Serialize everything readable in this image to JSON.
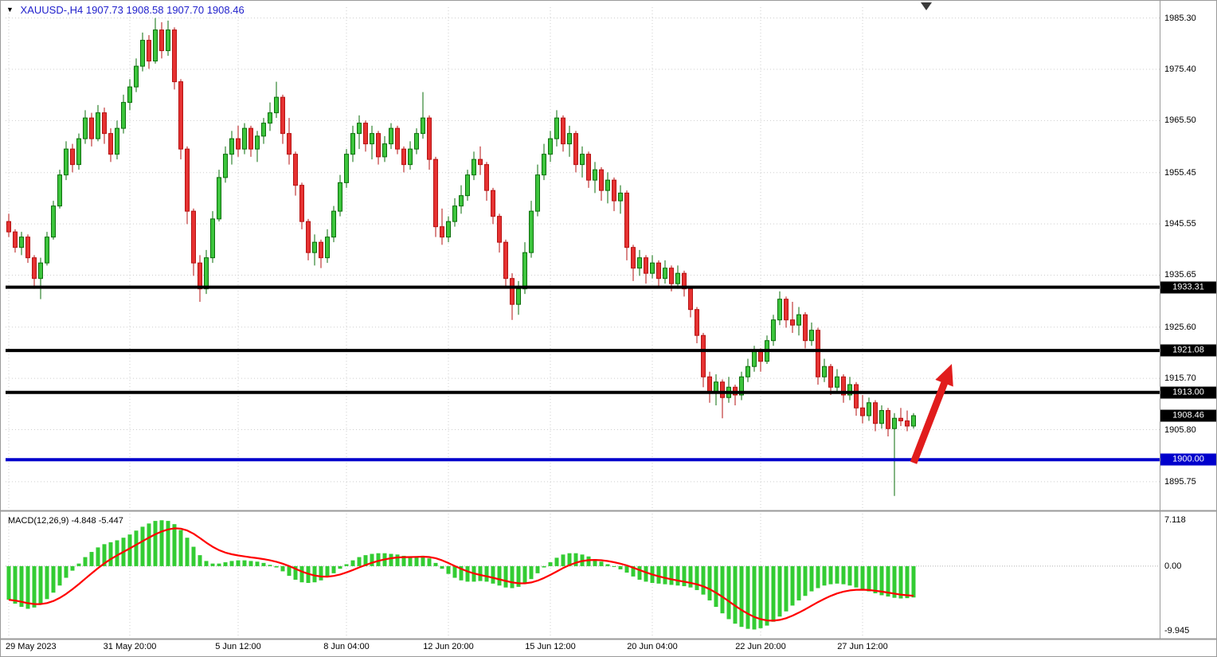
{
  "window": {
    "background": "#FFFFFF",
    "border_color": "#9A9A9A"
  },
  "header": {
    "dropdown_marker": "▼",
    "title": "XAUUSD-,H4 1907.73 1908.58 1907.70 1908.46",
    "color": "#2121CC"
  },
  "colors": {
    "up_body": "#3DC53D",
    "up_edge": "#0A6E0A",
    "down_body": "#E63232",
    "down_edge": "#B51212",
    "grid": "#CDCDCD",
    "separator": "#9A9A9A",
    "macd_hist": "#33CC33",
    "macd_signal": "#FF0000",
    "arrow": "#E11C1C",
    "level_black": "#000000",
    "level_blue": "#0000CC",
    "marker_bg": "#000000",
    "marker_text": "#FFFFFF",
    "axis_text": "#000000"
  },
  "price_axis": {
    "ticks": [
      "1985.30",
      "1975.40",
      "1965.50",
      "1955.45",
      "1945.55",
      "1935.65",
      "1925.60",
      "1915.70",
      "1905.80",
      "1895.75"
    ]
  },
  "time_axis": {
    "labels": [
      {
        "text": "29 May 2023",
        "index": 0
      },
      {
        "text": "31 May 20:00",
        "index": 19
      },
      {
        "text": "5 Jun 12:00",
        "index": 36
      },
      {
        "text": "8 Jun 04:00",
        "index": 53
      },
      {
        "text": "12 Jun 20:00",
        "index": 69
      },
      {
        "text": "15 Jun 12:00",
        "index": 85
      },
      {
        "text": "20 Jun 04:00",
        "index": 101
      },
      {
        "text": "22 Jun 20:00",
        "index": 118
      },
      {
        "text": "27 Jun 12:00",
        "index": 134
      }
    ]
  },
  "levels": [
    {
      "label": "1933.31",
      "price": 1933.31,
      "color": "#000000"
    },
    {
      "label": "1921.08",
      "price": 1921.08,
      "color": "#000000"
    },
    {
      "label": "1913.00",
      "price": 1913.0,
      "color": "#000000"
    },
    {
      "label": "1900.00",
      "price": 1900.0,
      "color": "#0000CC"
    }
  ],
  "price_marker": {
    "label": "1908.46",
    "price": 1908.46
  },
  "macd_panel": {
    "indicator_label": "MACD(12,26,9) -4.848 -5.447",
    "macd_value": -4.848,
    "signal_value": -5.447,
    "ticks": [
      {
        "text": "7.118",
        "value": 7.118
      },
      {
        "text": "0.00",
        "value": 0
      },
      {
        "text": "-9.945",
        "value": -9.945
      }
    ]
  },
  "annotations": {
    "arrow": {
      "start_index": 142,
      "start_price": 1899.4,
      "end_index": 148,
      "end_price": 1918.5
    },
    "shift_marker_index": 144
  },
  "chart_data": {
    "type": "candlestick",
    "symbol": "XAUUSD",
    "timeframe": "H4",
    "ylim": [
      1890.5,
      1987.4
    ],
    "macd_ylim": [
      -11.1,
      8.0
    ],
    "signal_period": 9,
    "candles": [
      [
        1946,
        1947.5,
        1943,
        1944
      ],
      [
        1944,
        1944.5,
        1940,
        1941
      ],
      [
        1941,
        1944,
        1939.5,
        1943
      ],
      [
        1943,
        1943.5,
        1938,
        1939
      ],
      [
        1939,
        1939.5,
        1933,
        1935
      ],
      [
        1935,
        1939,
        1931,
        1938
      ],
      [
        1938,
        1944,
        1937.5,
        1943
      ],
      [
        1943,
        1950,
        1942.5,
        1949
      ],
      [
        1949,
        1956,
        1948.5,
        1955
      ],
      [
        1955,
        1961.5,
        1954,
        1960
      ],
      [
        1960,
        1961,
        1955.5,
        1957
      ],
      [
        1957,
        1963,
        1956,
        1962
      ],
      [
        1962,
        1967.5,
        1961,
        1966
      ],
      [
        1966,
        1967,
        1960.5,
        1962
      ],
      [
        1962,
        1968.5,
        1961.5,
        1967
      ],
      [
        1967,
        1968,
        1961,
        1963
      ],
      [
        1963,
        1964,
        1957.5,
        1959
      ],
      [
        1959,
        1965.5,
        1958,
        1964
      ],
      [
        1964,
        1970.5,
        1963,
        1969
      ],
      [
        1969,
        1973.5,
        1967.5,
        1972
      ],
      [
        1972,
        1977.5,
        1971,
        1976
      ],
      [
        1976,
        1982.5,
        1975,
        1981
      ],
      [
        1981,
        1982,
        1975.5,
        1977
      ],
      [
        1977,
        1985.3,
        1976.5,
        1983
      ],
      [
        1983,
        1984.5,
        1977.5,
        1979
      ],
      [
        1979,
        1984.8,
        1978,
        1983
      ],
      [
        1983,
        1983.5,
        1971.5,
        1973
      ],
      [
        1973,
        1973.5,
        1958,
        1960
      ],
      [
        1960,
        1960.5,
        1945.5,
        1948
      ],
      [
        1948,
        1948.5,
        1935.5,
        1938
      ],
      [
        1938,
        1939.5,
        1930.5,
        1933
      ],
      [
        1933,
        1940.5,
        1932,
        1939
      ],
      [
        1939,
        1948,
        1938,
        1946.5
      ],
      [
        1946.5,
        1956,
        1946,
        1954.5
      ],
      [
        1954.5,
        1960.5,
        1953.5,
        1959
      ],
      [
        1959,
        1963.5,
        1957,
        1962
      ],
      [
        1962,
        1964.5,
        1958.5,
        1960
      ],
      [
        1960,
        1965,
        1959,
        1964
      ],
      [
        1964,
        1964.5,
        1958.5,
        1960
      ],
      [
        1960,
        1963.5,
        1957.5,
        1962.5
      ],
      [
        1962.5,
        1966,
        1961,
        1965
      ],
      [
        1965,
        1969,
        1963.5,
        1967
      ],
      [
        1967,
        1973,
        1966,
        1970
      ],
      [
        1970,
        1970.5,
        1961,
        1963
      ],
      [
        1963,
        1966,
        1957,
        1959
      ],
      [
        1959,
        1959.5,
        1951,
        1953
      ],
      [
        1953,
        1953.5,
        1944.5,
        1946
      ],
      [
        1946,
        1946.5,
        1938.5,
        1940
      ],
      [
        1940,
        1943.5,
        1937.5,
        1942
      ],
      [
        1942,
        1942.5,
        1937,
        1939
      ],
      [
        1939,
        1944.5,
        1938,
        1943
      ],
      [
        1943,
        1949,
        1942,
        1948
      ],
      [
        1948,
        1955,
        1947,
        1953.5
      ],
      [
        1953.5,
        1960,
        1952.5,
        1959
      ],
      [
        1959,
        1964.5,
        1957.5,
        1963
      ],
      [
        1963,
        1966.5,
        1960,
        1965
      ],
      [
        1965,
        1965.5,
        1959.5,
        1961
      ],
      [
        1961,
        1964.5,
        1958,
        1963
      ],
      [
        1963,
        1963.5,
        1957,
        1958.5
      ],
      [
        1958.5,
        1962.5,
        1957.5,
        1961
      ],
      [
        1961,
        1965,
        1960,
        1964
      ],
      [
        1964,
        1964.5,
        1959,
        1960
      ],
      [
        1960,
        1960.5,
        1955.5,
        1957
      ],
      [
        1957,
        1961.5,
        1956,
        1960
      ],
      [
        1960,
        1964,
        1959,
        1963
      ],
      [
        1963,
        1971,
        1962,
        1966
      ],
      [
        1966,
        1966.5,
        1956,
        1958
      ],
      [
        1958,
        1958.5,
        1943,
        1945
      ],
      [
        1945,
        1948.5,
        1941.5,
        1943
      ],
      [
        1943,
        1947,
        1942,
        1946
      ],
      [
        1946,
        1950.5,
        1945,
        1949
      ],
      [
        1949,
        1953,
        1947.5,
        1951
      ],
      [
        1951,
        1956,
        1950,
        1955
      ],
      [
        1955,
        1959.5,
        1954,
        1958
      ],
      [
        1958,
        1960.5,
        1955,
        1957
      ],
      [
        1957,
        1957.5,
        1950,
        1952
      ],
      [
        1952,
        1952.5,
        1945.5,
        1947
      ],
      [
        1947,
        1947.5,
        1940,
        1942
      ],
      [
        1942,
        1942.5,
        1933.5,
        1935
      ],
      [
        1935,
        1936,
        1927,
        1930
      ],
      [
        1930,
        1934.5,
        1928,
        1933
      ],
      [
        1933,
        1942,
        1932,
        1940
      ],
      [
        1940,
        1950,
        1939,
        1948
      ],
      [
        1948,
        1957,
        1947,
        1955
      ],
      [
        1955,
        1961,
        1954,
        1959
      ],
      [
        1959,
        1963.5,
        1957.5,
        1962
      ],
      [
        1962,
        1967.5,
        1960.5,
        1966
      ],
      [
        1966,
        1966.5,
        1959.5,
        1961
      ],
      [
        1961,
        1964.5,
        1958.5,
        1963
      ],
      [
        1963,
        1963.5,
        1955.5,
        1957
      ],
      [
        1957,
        1960.5,
        1954.5,
        1959
      ],
      [
        1959,
        1959.5,
        1952.5,
        1954
      ],
      [
        1954,
        1957.5,
        1951.5,
        1956
      ],
      [
        1956,
        1956.5,
        1950,
        1952
      ],
      [
        1952,
        1955.5,
        1949.5,
        1954
      ],
      [
        1954,
        1954.5,
        1948,
        1950
      ],
      [
        1950,
        1953,
        1947.5,
        1951.5
      ],
      [
        1951.5,
        1952,
        1938.5,
        1941
      ],
      [
        1941,
        1941.5,
        1934.5,
        1937
      ],
      [
        1937,
        1940.5,
        1935.5,
        1939
      ],
      [
        1939,
        1939.5,
        1934,
        1936
      ],
      [
        1936,
        1939.5,
        1935,
        1938
      ],
      [
        1938,
        1938.5,
        1933.5,
        1935
      ],
      [
        1935,
        1938.5,
        1934,
        1937
      ],
      [
        1937,
        1937.5,
        1932.5,
        1934
      ],
      [
        1934,
        1937.5,
        1933,
        1936
      ],
      [
        1936,
        1936.5,
        1931.5,
        1933
      ],
      [
        1933,
        1933.5,
        1927.5,
        1929
      ],
      [
        1929,
        1929.5,
        1922.5,
        1924
      ],
      [
        1924,
        1924.5,
        1914,
        1916
      ],
      [
        1916,
        1917,
        1911,
        1913
      ],
      [
        1913,
        1916.5,
        1910.5,
        1915
      ],
      [
        1915,
        1915.5,
        1908,
        1912
      ],
      [
        1912,
        1916,
        1911,
        1914
      ],
      [
        1914,
        1914.5,
        1910.5,
        1912.5
      ],
      [
        1912.5,
        1917,
        1911.5,
        1916
      ],
      [
        1916,
        1919.5,
        1915,
        1918
      ],
      [
        1918,
        1922,
        1917,
        1921
      ],
      [
        1921,
        1921.5,
        1917,
        1919
      ],
      [
        1919,
        1924,
        1918.5,
        1923
      ],
      [
        1923,
        1928,
        1922,
        1927
      ],
      [
        1927,
        1932.5,
        1926,
        1931
      ],
      [
        1931,
        1931.5,
        1925.5,
        1927
      ],
      [
        1927,
        1930.5,
        1924.5,
        1926
      ],
      [
        1926,
        1929.5,
        1924,
        1928
      ],
      [
        1928,
        1928.5,
        1921.5,
        1923
      ],
      [
        1923,
        1926.5,
        1922,
        1925
      ],
      [
        1925,
        1925.5,
        1914.5,
        1916
      ],
      [
        1916,
        1919.5,
        1915,
        1918
      ],
      [
        1918,
        1918.5,
        1912.5,
        1914
      ],
      [
        1914,
        1917.5,
        1913,
        1916
      ],
      [
        1916,
        1916.5,
        1911,
        1912.5
      ],
      [
        1912.5,
        1916,
        1911.5,
        1914.5
      ],
      [
        1914.5,
        1915,
        1908.5,
        1910
      ],
      [
        1910,
        1912.5,
        1907,
        1908.5
      ],
      [
        1908.5,
        1912,
        1907.5,
        1911
      ],
      [
        1911,
        1911.5,
        1905.5,
        1907
      ],
      [
        1907,
        1910.5,
        1906,
        1909.5
      ],
      [
        1909.5,
        1910,
        1904.5,
        1906
      ],
      [
        1906,
        1909,
        1893,
        1908
      ],
      [
        1908,
        1910,
        1906.5,
        1907.5
      ],
      [
        1907.5,
        1909.5,
        1905.5,
        1906.5
      ],
      [
        1906.5,
        1909,
        1906,
        1908.5
      ]
    ],
    "macd_hist": [
      -5.2,
      -5.8,
      -6.3,
      -6.6,
      -6.4,
      -5.9,
      -5.1,
      -4.1,
      -3.0,
      -1.8,
      -0.7,
      0.4,
      1.4,
      2.2,
      2.9,
      3.4,
      3.7,
      4.0,
      4.4,
      4.9,
      5.5,
      6.1,
      6.6,
      7.0,
      7.1,
      7.0,
      6.5,
      5.6,
      4.4,
      3.0,
      1.7,
      0.8,
      0.4,
      0.4,
      0.6,
      0.8,
      0.9,
      0.9,
      0.8,
      0.7,
      0.5,
      0.2,
      -0.2,
      -0.8,
      -1.5,
      -2.1,
      -2.5,
      -2.6,
      -2.5,
      -2.2,
      -1.7,
      -1.1,
      -0.4,
      0.3,
      0.9,
      1.4,
      1.7,
      1.9,
      2.0,
      2.0,
      1.9,
      1.8,
      1.6,
      1.5,
      1.5,
      1.6,
      1.2,
      0.5,
      -0.4,
      -1.2,
      -1.8,
      -2.2,
      -2.4,
      -2.4,
      -2.3,
      -2.4,
      -2.7,
      -3.0,
      -3.3,
      -3.4,
      -3.2,
      -2.7,
      -2.0,
      -1.1,
      -0.2,
      0.6,
      1.3,
      1.8,
      2.0,
      2.0,
      1.8,
      1.5,
      1.1,
      0.7,
      0.3,
      -0.1,
      -0.5,
      -1.0,
      -1.6,
      -2.1,
      -2.4,
      -2.6,
      -2.7,
      -2.8,
      -2.9,
      -3.0,
      -3.1,
      -3.3,
      -3.7,
      -4.4,
      -5.3,
      -6.3,
      -7.3,
      -8.2,
      -8.9,
      -9.4,
      -9.7,
      -9.8,
      -9.6,
      -9.2,
      -8.6,
      -7.8,
      -7.0,
      -6.1,
      -5.3,
      -4.6,
      -3.9,
      -3.4,
      -3.0,
      -2.8,
      -2.7,
      -2.8,
      -3.0,
      -3.3,
      -3.6,
      -3.9,
      -4.2,
      -4.5,
      -4.7,
      -4.9,
      -5.0,
      -4.95,
      -4.848
    ]
  }
}
